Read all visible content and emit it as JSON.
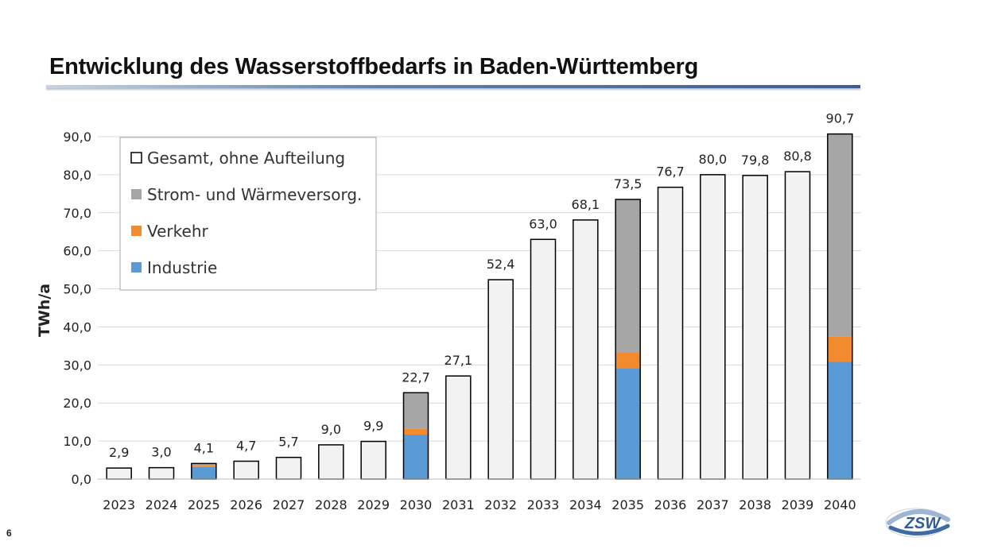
{
  "slide": {
    "title": "Entwicklung des Wasserstoffbedarfs in Baden-Württemberg",
    "page_number": "6",
    "logo_text": "ZSW"
  },
  "colors": {
    "gesamt_fill": "#f2f2f2",
    "gesamt_stroke": "#000000",
    "strom": "#a6a6a6",
    "verkehr": "#f28a2e",
    "industrie": "#5b9bd5",
    "grid": "#d9d9d9"
  },
  "chart_data": {
    "type": "bar",
    "stacked": true,
    "title": "",
    "xlabel": "",
    "ylabel": "TWh/a",
    "ylim": [
      0,
      90
    ],
    "yticks": [
      0,
      10,
      20,
      30,
      40,
      50,
      60,
      70,
      80,
      90
    ],
    "ytick_labels": [
      "0,0",
      "10,0",
      "20,0",
      "30,0",
      "40,0",
      "50,0",
      "60,0",
      "70,0",
      "80,0",
      "90,0"
    ],
    "grid": true,
    "legend_position": "top-left",
    "categories": [
      "2023",
      "2024",
      "2025",
      "2026",
      "2027",
      "2028",
      "2029",
      "2030",
      "2031",
      "2032",
      "2033",
      "2034",
      "2035",
      "2036",
      "2037",
      "2038",
      "2039",
      "2040"
    ],
    "totals": [
      2.9,
      3.0,
      4.1,
      4.7,
      5.7,
      9.0,
      9.9,
      22.7,
      27.1,
      52.4,
      63.0,
      68.1,
      73.5,
      76.7,
      80.0,
      79.8,
      80.8,
      90.7
    ],
    "total_labels": [
      "2,9",
      "3,0",
      "4,1",
      "4,7",
      "5,7",
      "9,0",
      "9,9",
      "22,7",
      "27,1",
      "52,4",
      "63,0",
      "68,1",
      "73,5",
      "76,7",
      "80,0",
      "79,8",
      "80,8",
      "90,7"
    ],
    "series": [
      {
        "name": "Gesamt, ohne Aufteilung",
        "values": [
          2.9,
          3.0,
          null,
          4.7,
          5.7,
          9.0,
          9.9,
          null,
          27.1,
          52.4,
          63.0,
          68.1,
          null,
          76.7,
          80.0,
          79.8,
          80.8,
          null
        ]
      },
      {
        "name": "Strom- und Wärmeversorg.",
        "values": [
          null,
          null,
          0.5,
          null,
          null,
          null,
          null,
          9.5,
          null,
          null,
          null,
          null,
          40.3,
          null,
          null,
          null,
          null,
          53.3
        ]
      },
      {
        "name": "Verkehr",
        "values": [
          null,
          null,
          0.4,
          null,
          null,
          null,
          null,
          1.5,
          null,
          null,
          null,
          null,
          4.0,
          null,
          null,
          null,
          null,
          6.6
        ]
      },
      {
        "name": "Industrie",
        "values": [
          null,
          null,
          3.2,
          null,
          null,
          null,
          null,
          11.7,
          null,
          null,
          null,
          null,
          29.2,
          null,
          null,
          null,
          null,
          30.8
        ]
      }
    ],
    "legend": [
      {
        "name": "Gesamt, ohne Aufteilung",
        "swatch": "outline"
      },
      {
        "name": "Strom- und Wärmeversorg.",
        "swatch": "strom"
      },
      {
        "name": "Verkehr",
        "swatch": "verkehr"
      },
      {
        "name": "Industrie",
        "swatch": "industrie"
      }
    ]
  }
}
